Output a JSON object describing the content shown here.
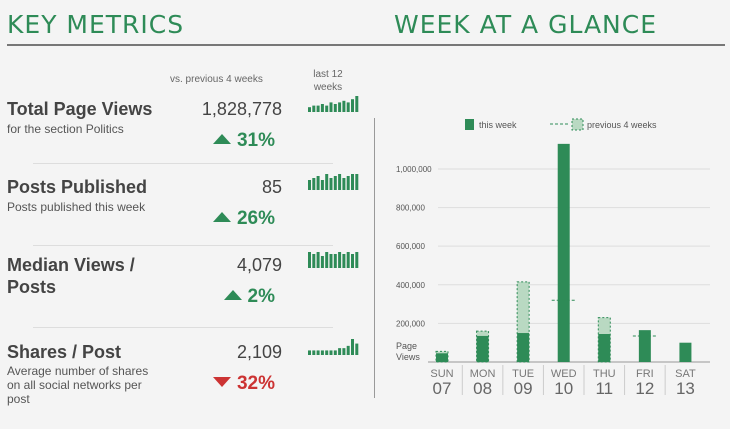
{
  "headers": {
    "left": "KEY METRICS",
    "right": "WEEK AT A GLANCE"
  },
  "columns": {
    "comparison": "vs. previous 4 weeks",
    "sparkline": "last 12 weeks"
  },
  "colors": {
    "accent": "#2e8b57",
    "bar": "#2e8b57",
    "prev": "#b9d9c2",
    "down": "#cc3333"
  },
  "metrics": [
    {
      "title": "Total Page Views",
      "subtitle": "for the section Politics",
      "value": "1,828,778",
      "change": "31%",
      "direction": "up",
      "spark": [
        3,
        4,
        4,
        5,
        4,
        6,
        5,
        6,
        7,
        6,
        8,
        10
      ]
    },
    {
      "title": "Posts Published",
      "subtitle": "Posts published this week",
      "value": "85",
      "change": "26%",
      "direction": "up",
      "spark": [
        5,
        6,
        7,
        5,
        8,
        6,
        7,
        8,
        6,
        7,
        8,
        8
      ]
    },
    {
      "title": "Median Views / Posts",
      "subtitle": "",
      "value": "4,079",
      "change": "2%",
      "direction": "up",
      "spark": [
        8,
        7,
        8,
        6,
        8,
        7,
        7,
        8,
        7,
        8,
        7,
        8
      ]
    },
    {
      "title": "Shares / Post",
      "subtitle": "Average number of shares on all social networks per post",
      "value": "2,109",
      "change": "32%",
      "direction": "down",
      "spark": [
        2,
        2,
        2,
        2,
        2,
        2,
        2,
        3,
        3,
        4,
        7,
        5
      ]
    }
  ],
  "chart_data": {
    "type": "bar",
    "title": "",
    "ylabel": "Page Views",
    "ylim": [
      0,
      1150000
    ],
    "yticks": [
      200000,
      400000,
      600000,
      800000,
      1000000
    ],
    "ytick_labels": [
      "200,000",
      "400,000",
      "600,000",
      "800,000",
      "1,000,000"
    ],
    "legend": {
      "this_week": "this week",
      "previous": "previous 4 weeks",
      "placement": "top"
    },
    "days": [
      "SUN",
      "MON",
      "TUE",
      "WED",
      "THU",
      "FRI",
      "SAT"
    ],
    "dates": [
      "07",
      "08",
      "09",
      "10",
      "11",
      "12",
      "13"
    ],
    "this_week": [
      45000,
      135000,
      150000,
      1130000,
      145000,
      165000,
      100000
    ],
    "previous_4_weeks": [
      55000,
      160000,
      415000,
      320000,
      230000,
      135000,
      null
    ]
  }
}
